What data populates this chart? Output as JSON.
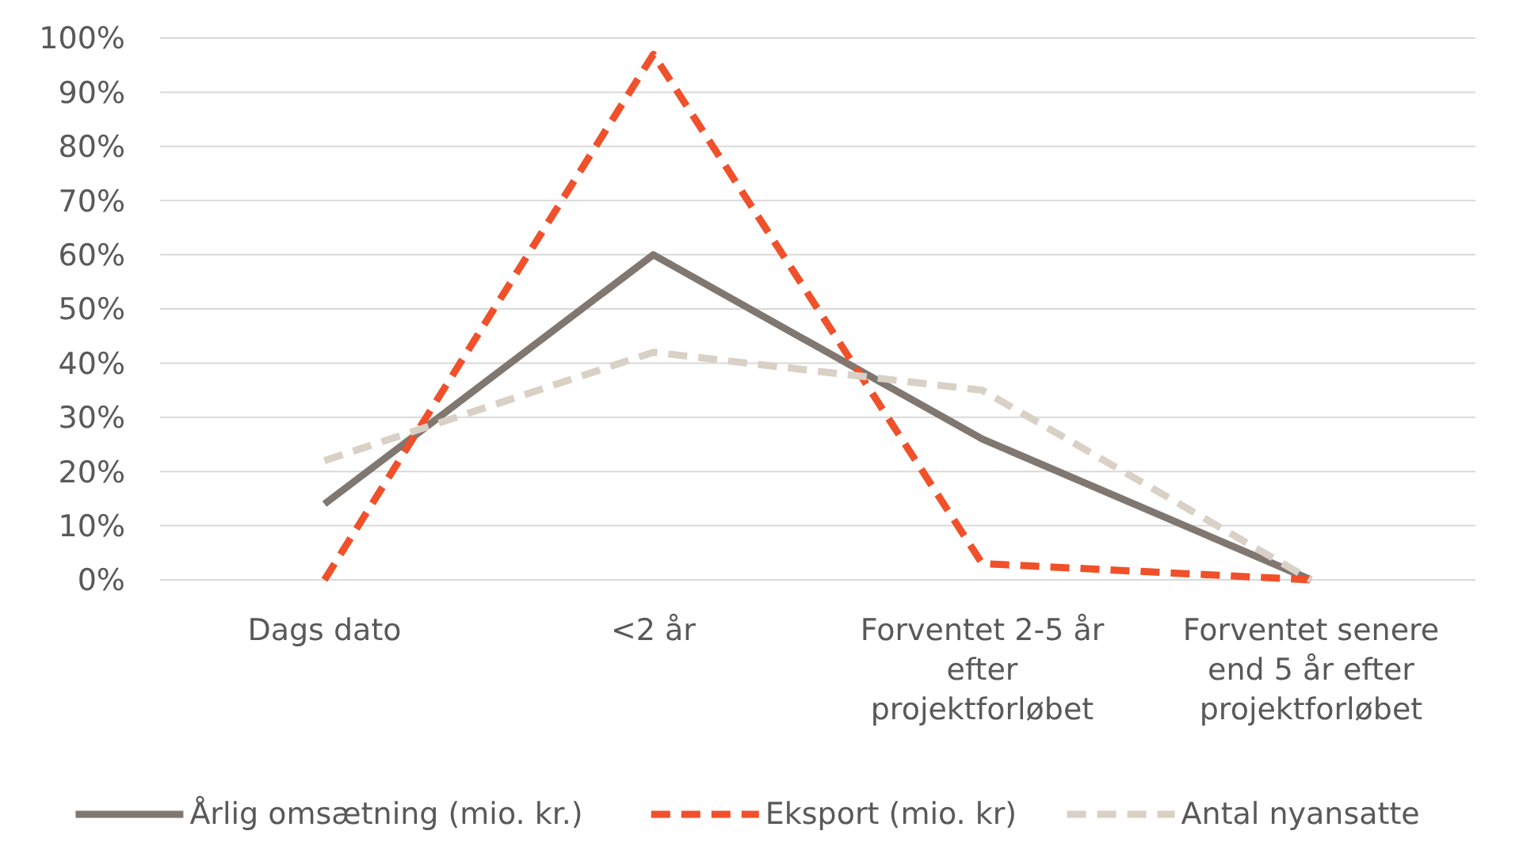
{
  "chart_data": {
    "type": "line",
    "categories": [
      "Dags dato",
      "<2 år",
      "Forventet 2-5 år efter projektforløbet",
      "Forventet senere end 5 år efter projektforløbet"
    ],
    "series": [
      {
        "name": "Årlig omsætning (mio. kr.)",
        "color": "#7f7770",
        "line_style": "solid",
        "values": [
          14,
          60,
          26,
          0
        ]
      },
      {
        "name": "Eksport (mio. kr)",
        "color": "#f0502a",
        "line_style": "dashed",
        "values": [
          0,
          97,
          3,
          0
        ]
      },
      {
        "name": "Antal nyansatte",
        "color": "#d9d0c6",
        "line_style": "dashed",
        "values": [
          22,
          42,
          35,
          0
        ]
      }
    ],
    "ylim": [
      0,
      100
    ],
    "yticks": [
      {
        "value": 0,
        "label": "0%"
      },
      {
        "value": 10,
        "label": "10%"
      },
      {
        "value": 20,
        "label": "20%"
      },
      {
        "value": 30,
        "label": "30%"
      },
      {
        "value": 40,
        "label": "40%"
      },
      {
        "value": 50,
        "label": "50%"
      },
      {
        "value": 60,
        "label": "60%"
      },
      {
        "value": 70,
        "label": "70%"
      },
      {
        "value": 80,
        "label": "80%"
      },
      {
        "value": 90,
        "label": "90%"
      },
      {
        "value": 100,
        "label": "100%"
      }
    ],
    "grid": "y",
    "legend": "bottom",
    "marker": "none"
  }
}
